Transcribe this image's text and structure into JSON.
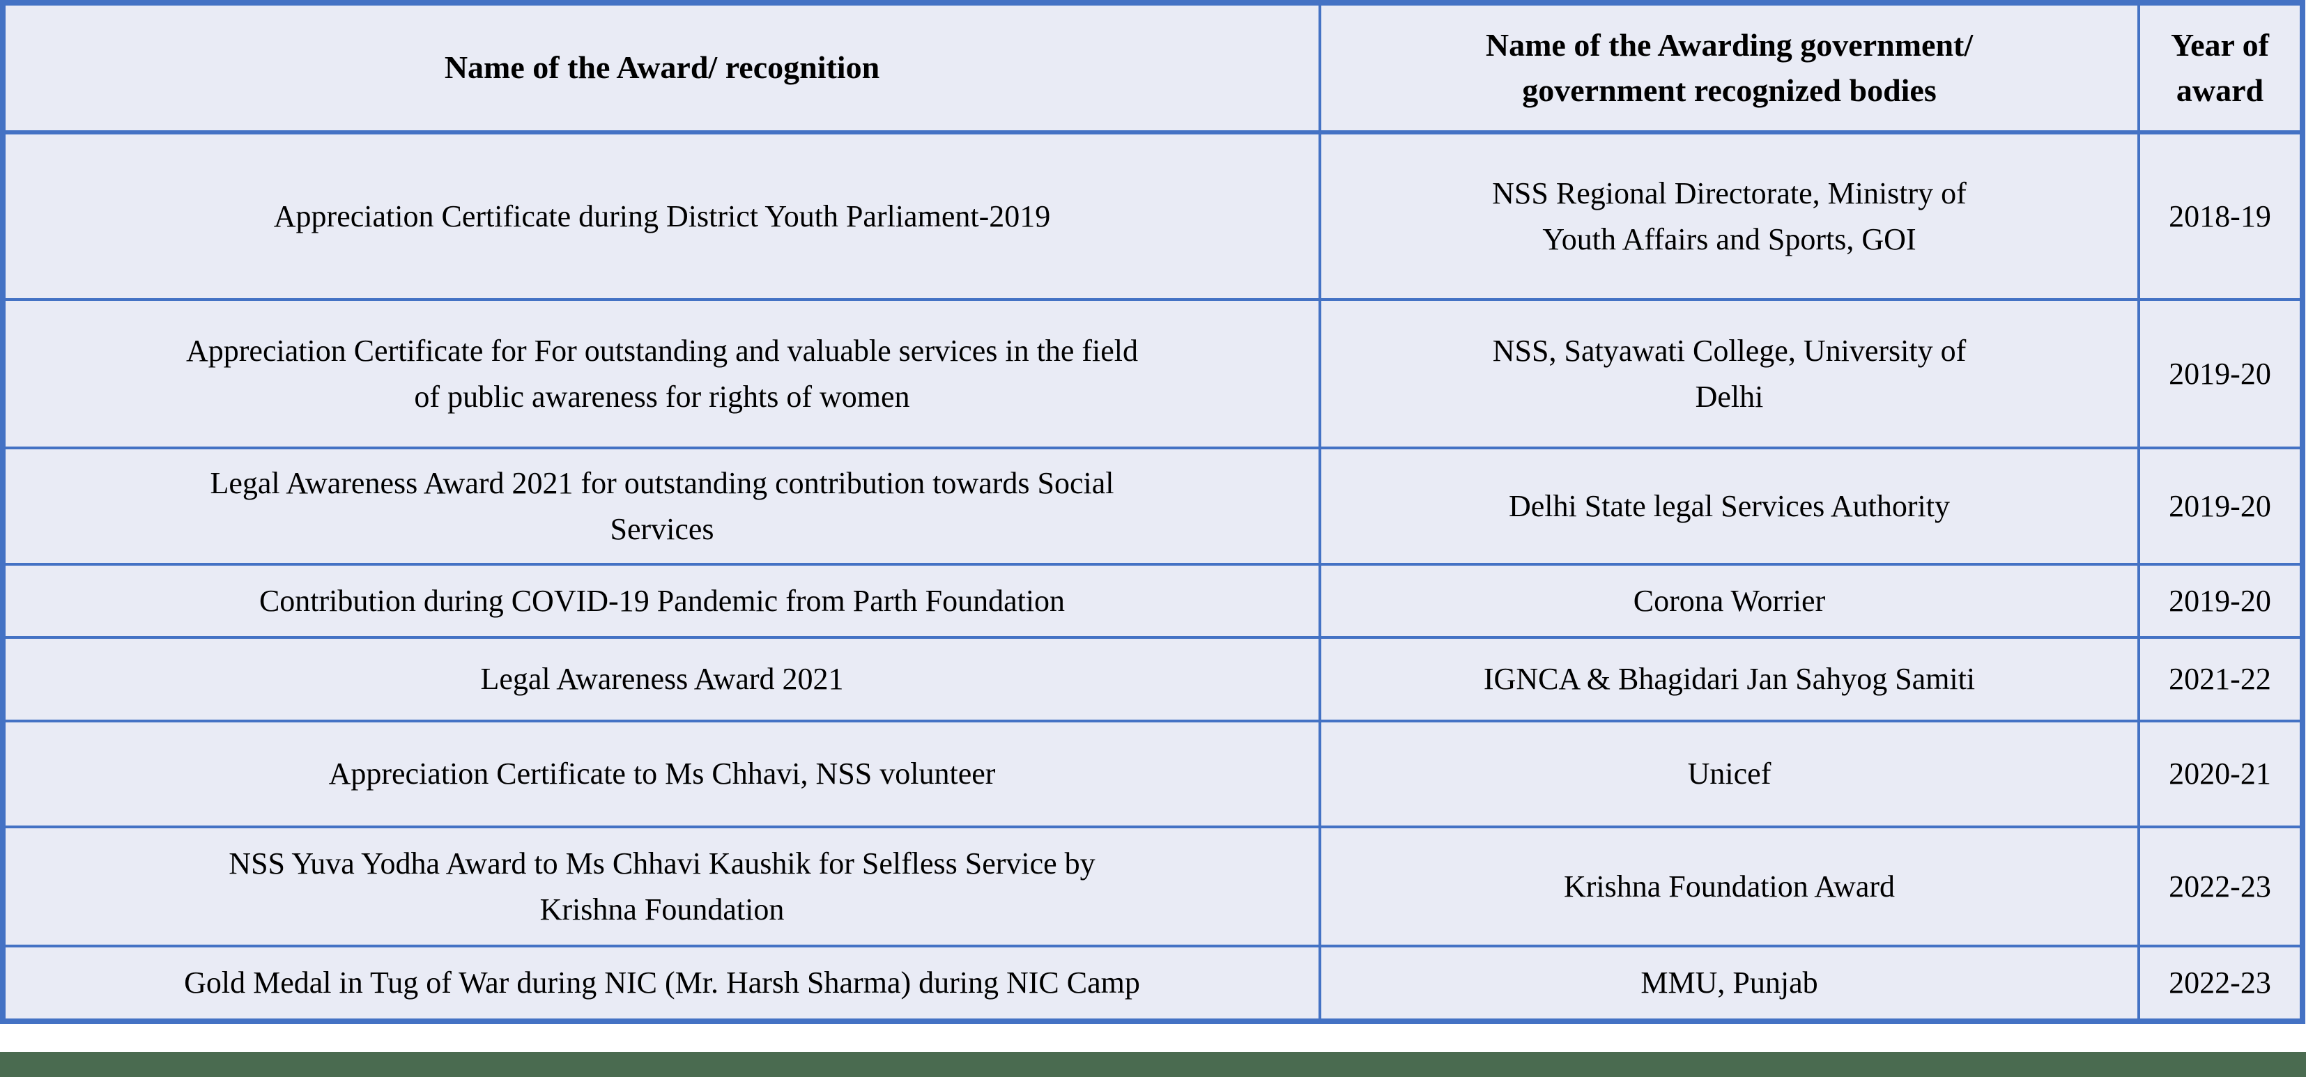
{
  "table": {
    "headers": {
      "award": "Name of the Award/ recognition",
      "body": "Name of the Awarding government/\ngovernment recognized bodies",
      "year": "Year of\naward"
    },
    "rows": [
      {
        "award": "Appreciation Certificate during District Youth Parliament-2019",
        "body": "NSS Regional Directorate, Ministry of\nYouth Affairs and Sports, GOI",
        "year": "2018-19"
      },
      {
        "award": "Appreciation Certificate for For outstanding and valuable services in the field\nof  public awareness for rights of women",
        "body": "NSS, Satyawati College, University of\nDelhi",
        "year": "2019-20"
      },
      {
        "award": "Legal Awareness Award 2021 for outstanding contribution towards Social\nServices",
        "body": "Delhi State legal Services Authority",
        "year": "2019-20"
      },
      {
        "award": "Contribution during COVID-19 Pandemic from Parth Foundation",
        "body": "Corona Worrier",
        "year": "2019-20"
      },
      {
        "award": "Legal Awareness Award 2021",
        "body": "IGNCA & Bhagidari Jan Sahyog Samiti",
        "year": "2021-22"
      },
      {
        "award": "Appreciation Certificate to Ms Chhavi, NSS volunteer",
        "body": "Unicef",
        "year": "2020-21"
      },
      {
        "award": "NSS Yuva Yodha Award to Ms Chhavi Kaushik for Selfless Service by\nKrishna Foundation",
        "body": "Krishna Foundation Award",
        "year": "2022-23"
      },
      {
        "award": "Gold Medal in Tug of War during NIC (Mr. Harsh Sharma) during NIC Camp",
        "body": "MMU, Punjab",
        "year": "2022-23"
      }
    ]
  },
  "colors": {
    "border_blue": "#4472c4",
    "cell_background": "#e9ebf5",
    "bottom_strip_green": "#4a6b50"
  }
}
